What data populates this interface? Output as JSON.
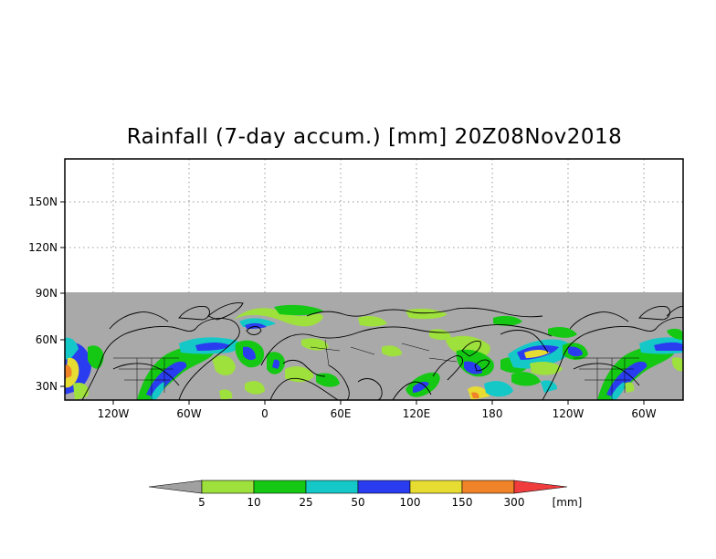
{
  "title": "Rainfall (7-day accum.) [mm] 20Z08Nov2018",
  "map": {
    "y_ticks": [
      "150N",
      "120N",
      "90N",
      "60N",
      "30N"
    ],
    "x_ticks": [
      "120W",
      "60W",
      "0",
      "60E",
      "120E",
      "180",
      "120W",
      "60W"
    ]
  },
  "legend": {
    "unit": "[mm]",
    "thresholds": [
      "5",
      "10",
      "25",
      "50",
      "100",
      "150",
      "300"
    ],
    "colors": [
      "#a0a0a0",
      "#9ee03c",
      "#14c814",
      "#14c8c8",
      "#2a3cf0",
      "#e6dc32",
      "#f08228",
      "#f03c3c"
    ]
  },
  "colors": {
    "no_data": "#a9a9a9",
    "light": "#9ee03c",
    "moderate": "#14c814",
    "heavy": "#14c8c8",
    "very_heavy": "#2a3cf0",
    "extreme": "#e6dc32",
    "severe": "#f08228"
  }
}
